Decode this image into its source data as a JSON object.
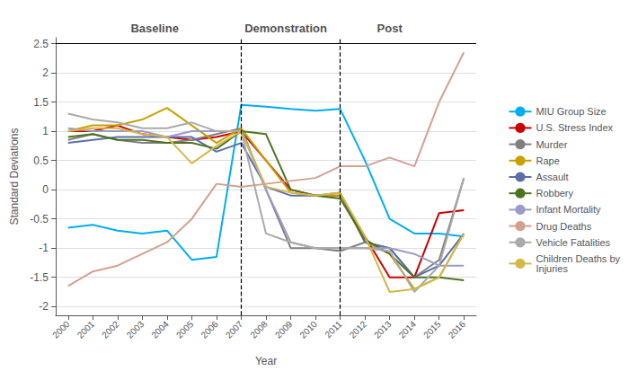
{
  "chart_data": {
    "type": "line",
    "xlabel": "Year",
    "ylabel": "Standard Deviations",
    "x": [
      2000,
      2001,
      2002,
      2003,
      2004,
      2005,
      2006,
      2007,
      2008,
      2009,
      2010,
      2011,
      2012,
      2013,
      2014,
      2015,
      2016
    ],
    "series": [
      {
        "name": "MIU Group Size",
        "color": "#00AEEF",
        "values": [
          -0.65,
          -0.6,
          -0.7,
          -0.75,
          -0.7,
          -1.2,
          -1.15,
          1.45,
          1.42,
          1.38,
          1.35,
          1.38,
          0.5,
          -0.5,
          -0.75,
          -0.75,
          -0.8
        ]
      },
      {
        "name": "U.S. Stress Index",
        "color": "#CC0000",
        "values": [
          1.0,
          1.0,
          1.1,
          0.95,
          0.9,
          0.85,
          0.9,
          1.0,
          0.5,
          0.0,
          -0.1,
          -0.1,
          -0.8,
          -1.5,
          -1.5,
          -0.4,
          -0.35
        ]
      },
      {
        "name": "Murder",
        "color": "#808080",
        "values": [
          0.85,
          0.95,
          0.85,
          0.8,
          0.8,
          0.85,
          0.95,
          1.05,
          0.0,
          -1.0,
          -1.0,
          -1.05,
          -0.9,
          -1.0,
          -1.5,
          -1.2,
          0.2
        ]
      },
      {
        "name": "Rape",
        "color": "#C8A000",
        "values": [
          1.0,
          1.1,
          1.1,
          1.2,
          1.4,
          1.1,
          0.8,
          1.05,
          0.5,
          -0.05,
          -0.1,
          -0.1,
          -0.9,
          -1.1,
          -1.7,
          -1.5,
          -0.75
        ]
      },
      {
        "name": "Assault",
        "color": "#5B6EA8",
        "values": [
          0.8,
          0.85,
          0.9,
          0.9,
          0.9,
          0.9,
          0.65,
          0.8,
          0.05,
          -0.1,
          -0.1,
          -0.05,
          -0.9,
          -1.0,
          -1.5,
          -1.3,
          -0.75
        ]
      },
      {
        "name": "Robbery",
        "color": "#4E7320",
        "values": [
          0.9,
          0.95,
          0.85,
          0.85,
          0.8,
          0.8,
          0.7,
          1.0,
          0.95,
          0.0,
          -0.1,
          -0.15,
          -0.85,
          -1.1,
          -1.5,
          -1.5,
          -1.55
        ]
      },
      {
        "name": "Infant Mortality",
        "color": "#9B9BCA",
        "values": [
          1.05,
          1.0,
          1.0,
          1.0,
          0.9,
          1.0,
          1.0,
          1.0,
          0.0,
          -0.9,
          -1.0,
          -1.0,
          -1.0,
          -1.0,
          -1.1,
          -1.3,
          -1.3
        ]
      },
      {
        "name": "Drug Deaths",
        "color": "#D4A090",
        "values": [
          -1.65,
          -1.4,
          -1.3,
          -1.1,
          -0.9,
          -0.5,
          0.1,
          0.05,
          0.1,
          0.15,
          0.2,
          0.4,
          0.4,
          0.55,
          0.4,
          1.5,
          2.35
        ]
      },
      {
        "name": "Vehicle Fatalities",
        "color": "#AAAAAA",
        "values": [
          1.3,
          1.2,
          1.15,
          1.05,
          1.05,
          1.15,
          1.0,
          1.0,
          -0.75,
          -0.9,
          -1.0,
          -1.0,
          -1.0,
          -1.05,
          -1.75,
          -1.3,
          0.2
        ]
      },
      {
        "name": "Children Deaths by\nInjuries",
        "color": "#D4B84A",
        "values": [
          1.0,
          1.05,
          1.05,
          0.95,
          0.9,
          0.45,
          0.75,
          1.0,
          0.05,
          -0.05,
          -0.1,
          -0.05,
          -0.8,
          -1.75,
          -1.7,
          -1.5,
          -0.75
        ]
      }
    ],
    "xlim": [
      1999.5,
      2016.5
    ],
    "xticks": [
      2000,
      2001,
      2002,
      2003,
      2004,
      2005,
      2006,
      2007,
      2008,
      2009,
      2010,
      2011,
      2012,
      2013,
      2014,
      2015,
      2016
    ],
    "ylim": [
      -2.15,
      2.6
    ],
    "yticks": [
      -2.0,
      -1.5,
      -1.0,
      -0.5,
      0.0,
      0.5,
      1.0,
      1.5,
      2.0,
      2.5
    ],
    "grid": true,
    "legend": "right",
    "vlines": [
      2007,
      2011
    ],
    "hlines": [
      2.5
    ],
    "annotations": [
      {
        "text": "Baseline",
        "x": 2003.5
      },
      {
        "text": "Demonstration",
        "x": 2008.8
      },
      {
        "text": "Post",
        "x": 2013.0
      }
    ]
  }
}
